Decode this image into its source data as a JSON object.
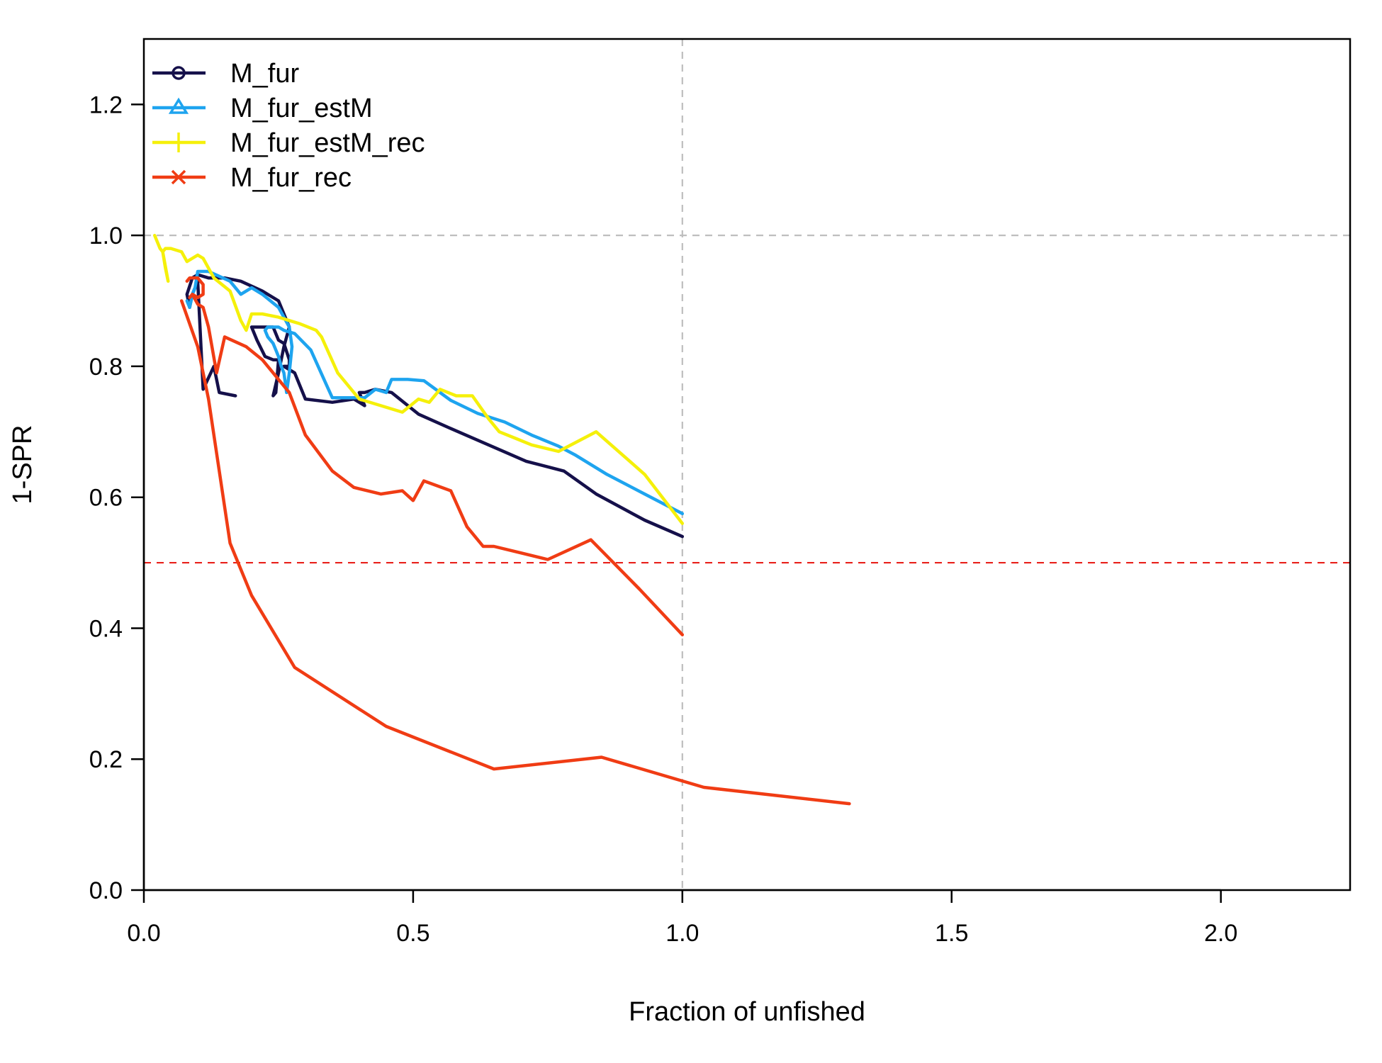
{
  "chart_data": {
    "type": "line",
    "title": "",
    "xlabel": "Fraction of unfished",
    "ylabel": "1-SPR",
    "xlim": [
      0,
      2.24
    ],
    "ylim": [
      0,
      1.3
    ],
    "x_ticks": [
      "0.0",
      "0.5",
      "1.0",
      "1.5",
      "2.0"
    ],
    "y_ticks": [
      "0.0",
      "0.2",
      "0.4",
      "0.6",
      "0.8",
      "1.0",
      "1.2"
    ],
    "legend_position": "top-left",
    "reference_lines": [
      {
        "orientation": "vertical",
        "value": 1.0,
        "color": "#bebebe",
        "style": "dashed"
      },
      {
        "orientation": "horizontal",
        "value": 1.0,
        "color": "#bebebe",
        "style": "dashed"
      },
      {
        "orientation": "horizontal",
        "value": 0.5,
        "color": "#e8211b",
        "style": "dashed"
      }
    ],
    "series": [
      {
        "name": "M_fur",
        "color": "#15104a",
        "marker": "circle",
        "x": [
          0.17,
          0.14,
          0.13,
          0.11,
          0.1,
          0.09,
          0.085,
          0.08,
          0.09,
          0.1,
          0.12,
          0.15,
          0.18,
          0.22,
          0.25,
          0.27,
          0.26,
          0.25,
          0.24,
          0.245,
          0.25,
          0.24,
          0.225,
          0.21,
          0.2,
          0.22,
          0.24,
          0.25,
          0.26,
          0.27,
          0.27,
          0.26,
          0.28,
          0.3,
          0.35,
          0.39,
          0.41,
          0.4,
          0.41,
          0.43,
          0.46,
          0.51,
          0.57,
          0.64,
          0.71,
          0.78,
          0.84,
          0.93,
          1.0
        ],
        "y": [
          0.755,
          0.76,
          0.8,
          0.765,
          0.93,
          0.91,
          0.89,
          0.91,
          0.935,
          0.94,
          0.935,
          0.935,
          0.93,
          0.915,
          0.9,
          0.86,
          0.83,
          0.79,
          0.755,
          0.76,
          0.81,
          0.81,
          0.815,
          0.84,
          0.86,
          0.86,
          0.86,
          0.84,
          0.835,
          0.81,
          0.8,
          0.8,
          0.79,
          0.75,
          0.745,
          0.75,
          0.74,
          0.76,
          0.76,
          0.765,
          0.76,
          0.727,
          0.705,
          0.68,
          0.655,
          0.64,
          0.605,
          0.565,
          0.54
        ]
      },
      {
        "name": "M_fur_estM",
        "color": "#1ea4ef",
        "marker": "triangle",
        "x": [
          0.08,
          0.085,
          0.09,
          0.095,
          0.1,
          0.12,
          0.16,
          0.18,
          0.2,
          0.22,
          0.25,
          0.27,
          0.275,
          0.27,
          0.265,
          0.26,
          0.255,
          0.25,
          0.245,
          0.24,
          0.23,
          0.225,
          0.23,
          0.25,
          0.26,
          0.28,
          0.31,
          0.34,
          0.35,
          0.41,
          0.43,
          0.45,
          0.46,
          0.49,
          0.52,
          0.57,
          0.62,
          0.67,
          0.72,
          0.77,
          0.8,
          0.86,
          0.93,
          1.0
        ],
        "y": [
          0.9,
          0.89,
          0.91,
          0.92,
          0.945,
          0.945,
          0.93,
          0.91,
          0.92,
          0.91,
          0.89,
          0.86,
          0.83,
          0.79,
          0.76,
          0.79,
          0.8,
          0.815,
          0.825,
          0.835,
          0.845,
          0.855,
          0.86,
          0.86,
          0.855,
          0.85,
          0.825,
          0.77,
          0.752,
          0.752,
          0.765,
          0.76,
          0.78,
          0.78,
          0.778,
          0.748,
          0.728,
          0.715,
          0.695,
          0.678,
          0.665,
          0.635,
          0.605,
          0.575
        ]
      },
      {
        "name": "M_fur_estM_rec",
        "color": "#f5f00a",
        "marker": "plus",
        "x": [
          0.02,
          0.03,
          0.035,
          0.045,
          0.04,
          0.035,
          0.04,
          0.05,
          0.07,
          0.08,
          0.09,
          0.1,
          0.11,
          0.13,
          0.16,
          0.18,
          0.19,
          0.2,
          0.22,
          0.25,
          0.27,
          0.29,
          0.32,
          0.33,
          0.36,
          0.4,
          0.44,
          0.48,
          0.51,
          0.53,
          0.55,
          0.58,
          0.61,
          0.64,
          0.66,
          0.69,
          0.72,
          0.77,
          0.84,
          0.93,
          1.0
        ],
        "y": [
          1.0,
          0.98,
          0.975,
          0.93,
          0.95,
          0.975,
          0.98,
          0.98,
          0.975,
          0.96,
          0.965,
          0.97,
          0.965,
          0.935,
          0.915,
          0.87,
          0.855,
          0.88,
          0.88,
          0.875,
          0.87,
          0.865,
          0.855,
          0.845,
          0.79,
          0.75,
          0.74,
          0.73,
          0.75,
          0.745,
          0.765,
          0.755,
          0.755,
          0.72,
          0.7,
          0.69,
          0.68,
          0.67,
          0.7,
          0.635,
          0.56
        ]
      },
      {
        "name": "M_fur_rec",
        "color": "#f03c14",
        "marker": "x",
        "x": [
          0.08,
          0.085,
          0.09,
          0.1,
          0.11,
          0.11,
          0.1,
          0.09,
          0.085,
          0.09,
          0.1,
          0.11,
          0.12,
          0.135,
          0.15,
          0.19,
          0.22,
          0.25,
          0.27,
          0.3,
          0.35,
          0.39,
          0.44,
          0.48,
          0.5,
          0.52,
          0.57,
          0.6,
          0.63,
          0.65,
          0.7,
          0.75,
          0.83,
          0.92,
          1.0
        ],
        "y": [
          0.93,
          0.935,
          0.935,
          0.935,
          0.925,
          0.91,
          0.905,
          0.91,
          0.905,
          0.91,
          0.895,
          0.89,
          0.86,
          0.79,
          0.845,
          0.83,
          0.81,
          0.78,
          0.76,
          0.695,
          0.64,
          0.615,
          0.605,
          0.61,
          0.595,
          0.625,
          0.61,
          0.555,
          0.525,
          0.525,
          0.515,
          0.505,
          0.535,
          0.46,
          0.39
        ]
      },
      {
        "name": "",
        "color": "#f03c14",
        "marker": "none",
        "x": [
          0.07,
          0.1,
          0.12,
          0.16,
          0.2,
          0.28,
          0.45,
          0.65,
          0.85,
          1.04,
          1.31
        ],
        "y": [
          0.9,
          0.83,
          0.75,
          0.53,
          0.45,
          0.34,
          0.25,
          0.185,
          0.203,
          0.157,
          0.132
        ]
      }
    ]
  }
}
